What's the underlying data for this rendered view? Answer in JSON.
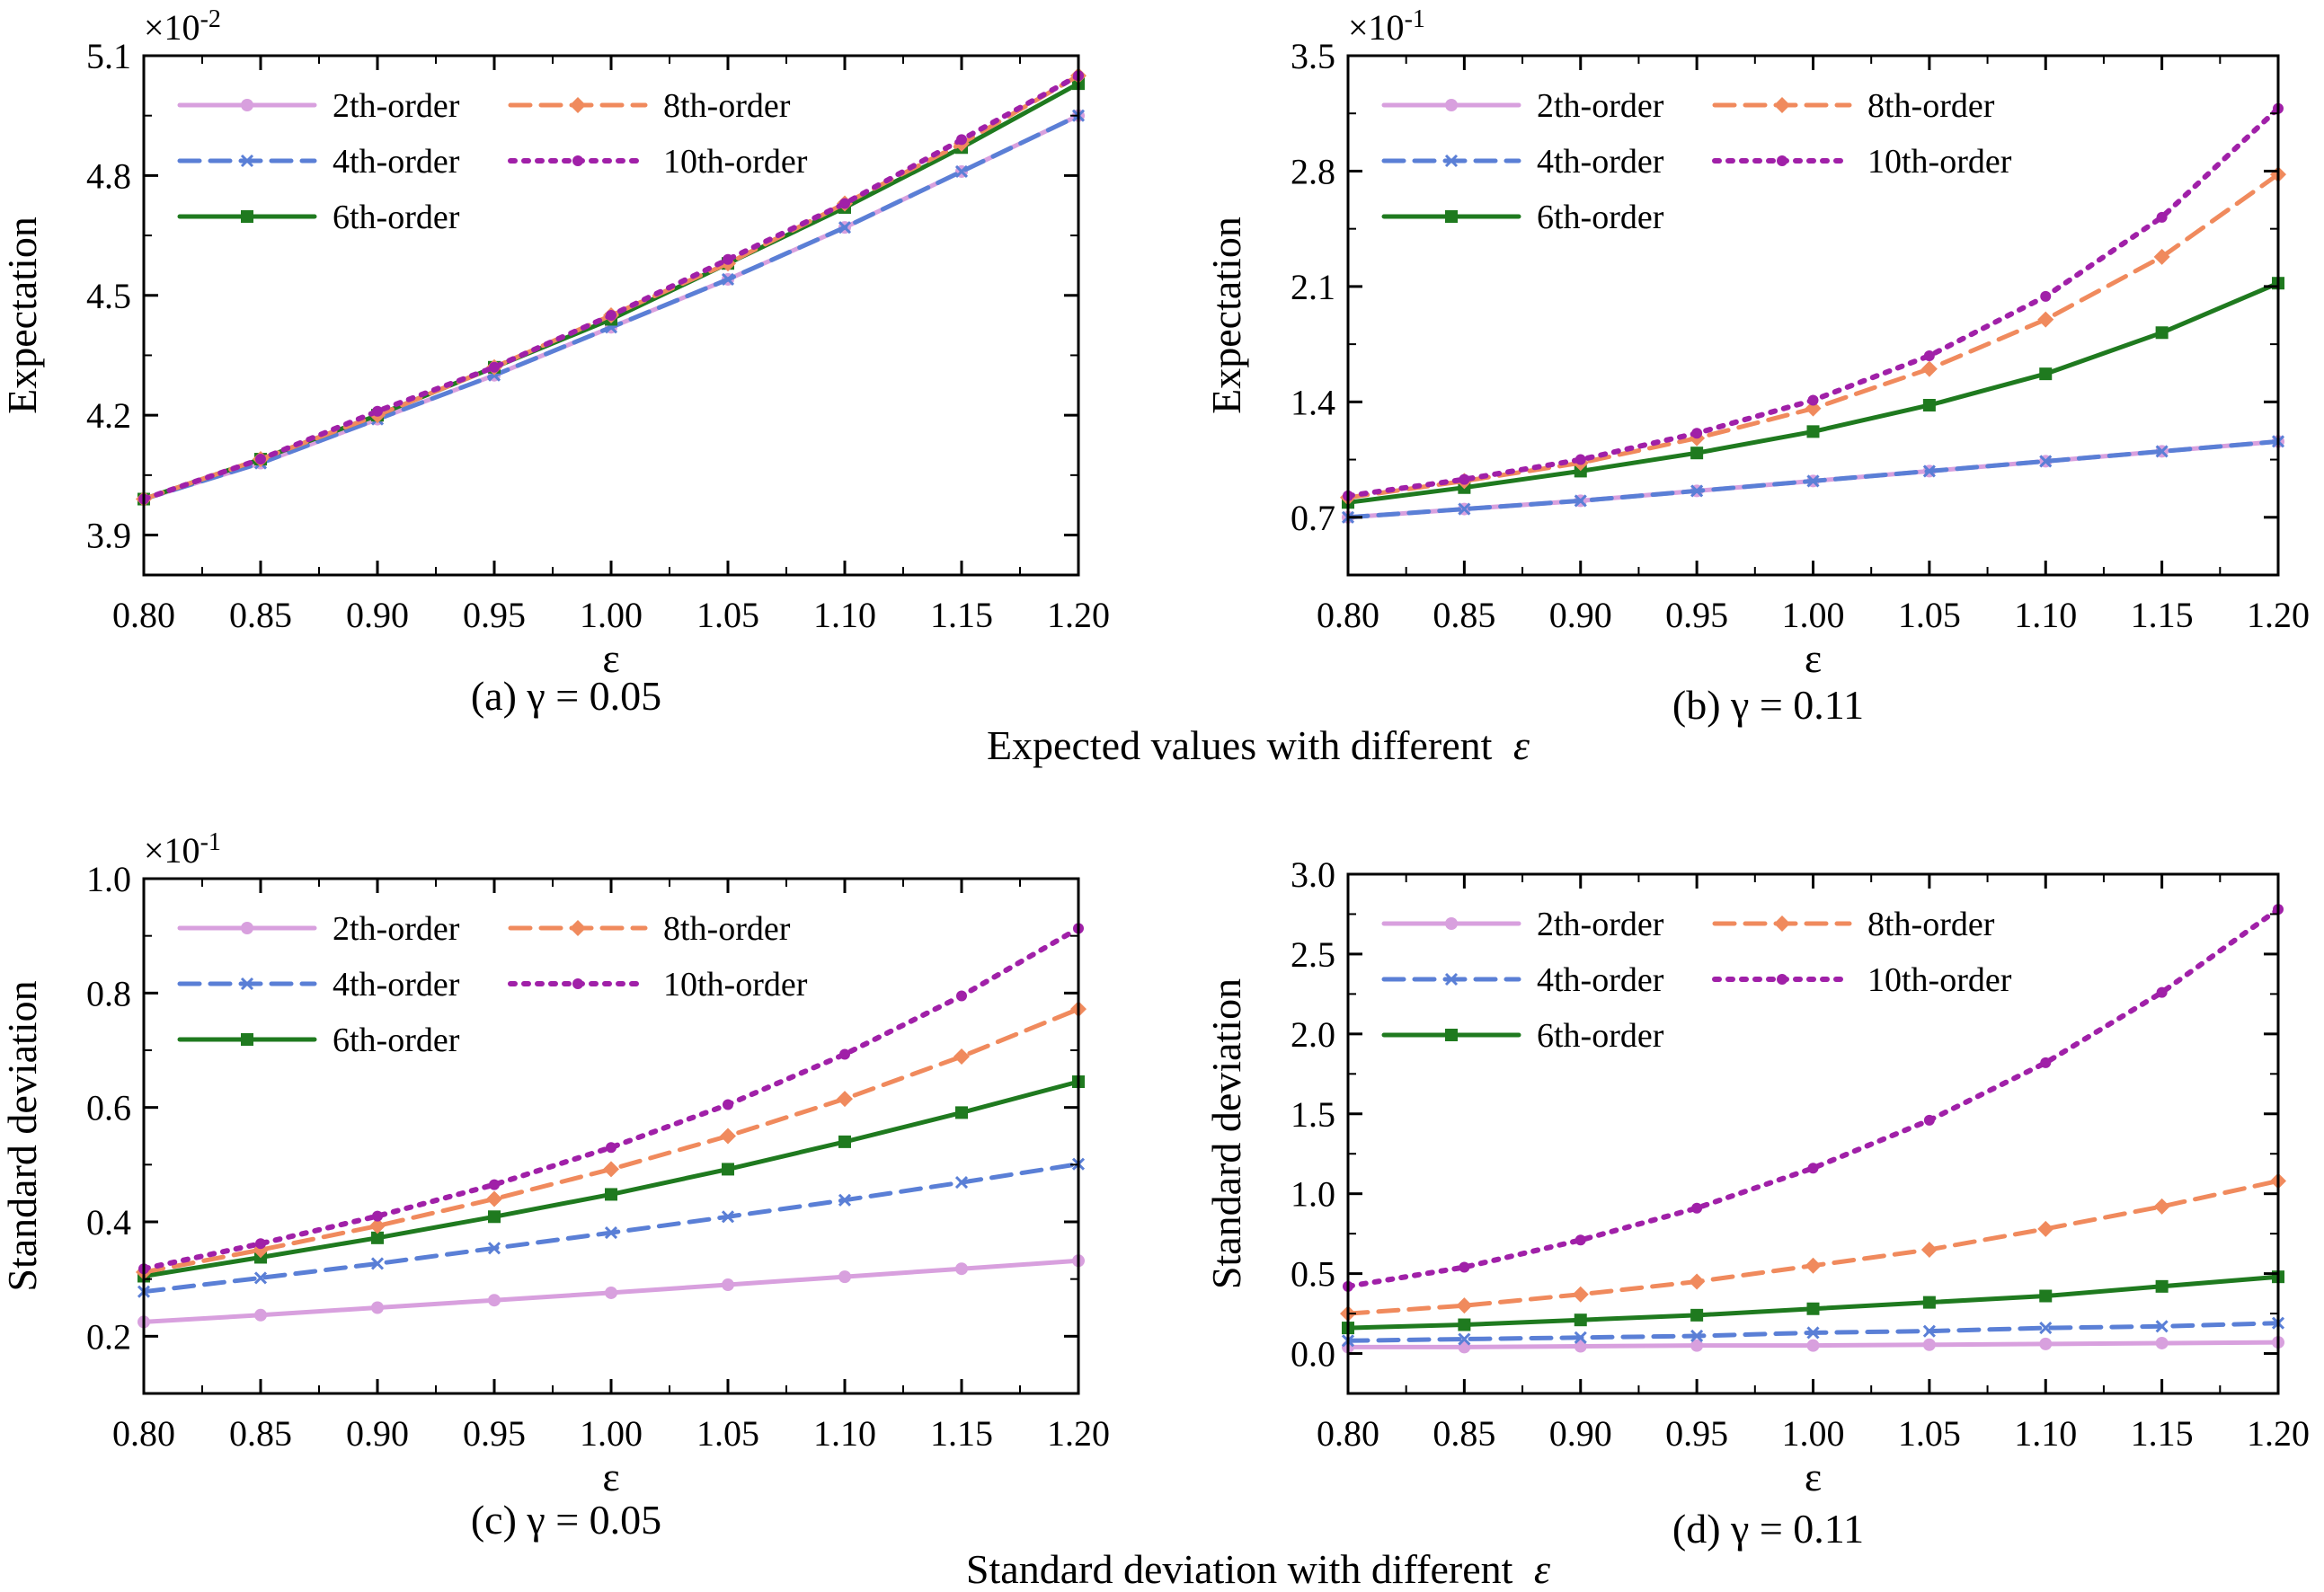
{
  "figure": {
    "captions": {
      "group_top": "Expected values with different",
      "group_bottom": "Standard deviation with different",
      "group_symbol": "ε"
    }
  },
  "chart_data": [
    {
      "id": "a",
      "type": "line",
      "caption": "(a) γ = 0.05",
      "xlabel": "ε",
      "ylabel": "Expectation",
      "exponent": {
        "base": "×10",
        "power": "-2"
      },
      "xlim": [
        0.8,
        1.2
      ],
      "ylim": [
        3.8,
        5.1
      ],
      "xticks": [
        "0.80",
        "0.85",
        "0.90",
        "0.95",
        "1.00",
        "1.05",
        "1.10",
        "1.15",
        "1.20"
      ],
      "yticks": [
        "3.9",
        "4.2",
        "4.5",
        "4.8",
        "5.1"
      ],
      "x": [
        0.8,
        0.85,
        0.9,
        0.95,
        1.0,
        1.05,
        1.1,
        1.15,
        1.2
      ],
      "series": [
        {
          "name": "2th-order",
          "color": "#d8a0de",
          "dash": "solid",
          "marker": "circle",
          "values": [
            3.99,
            4.08,
            4.19,
            4.3,
            4.42,
            4.54,
            4.67,
            4.81,
            4.95
          ]
        },
        {
          "name": "4th-order",
          "color": "#5a7fd6",
          "dash": "dashed",
          "marker": "x",
          "values": [
            3.99,
            4.08,
            4.19,
            4.3,
            4.42,
            4.54,
            4.67,
            4.81,
            4.95
          ]
        },
        {
          "name": "6th-order",
          "color": "#1f7a1f",
          "dash": "solid",
          "marker": "square",
          "values": [
            3.99,
            4.09,
            4.2,
            4.32,
            4.44,
            4.58,
            4.72,
            4.87,
            5.03
          ]
        },
        {
          "name": "8th-order",
          "color": "#f08a5d",
          "dash": "dashed",
          "marker": "diamond",
          "values": [
            3.99,
            4.09,
            4.2,
            4.32,
            4.45,
            4.58,
            4.73,
            4.88,
            5.05
          ]
        },
        {
          "name": "10th-order",
          "color": "#a020a8",
          "dash": "dotted",
          "marker": "dot",
          "values": [
            3.99,
            4.09,
            4.21,
            4.32,
            4.45,
            4.59,
            4.73,
            4.89,
            5.05
          ]
        }
      ],
      "legend_position": "top-left"
    },
    {
      "id": "b",
      "type": "line",
      "caption": "(b) γ = 0.11",
      "xlabel": "ε",
      "ylabel": "Expectation",
      "exponent": {
        "base": "×10",
        "power": "-1"
      },
      "xlim": [
        0.8,
        1.2
      ],
      "ylim": [
        0.35,
        3.5
      ],
      "xticks": [
        "0.80",
        "0.85",
        "0.90",
        "0.95",
        "1.00",
        "1.05",
        "1.10",
        "1.15",
        "1.20"
      ],
      "yticks": [
        "0.7",
        "1.4",
        "2.1",
        "2.8",
        "3.5"
      ],
      "x": [
        0.8,
        0.85,
        0.9,
        0.95,
        1.0,
        1.05,
        1.1,
        1.15,
        1.2
      ],
      "series": [
        {
          "name": "2th-order",
          "color": "#d8a0de",
          "dash": "solid",
          "marker": "circle",
          "values": [
            0.7,
            0.75,
            0.8,
            0.86,
            0.92,
            0.98,
            1.04,
            1.1,
            1.16
          ]
        },
        {
          "name": "4th-order",
          "color": "#5a7fd6",
          "dash": "dashed",
          "marker": "x",
          "values": [
            0.7,
            0.75,
            0.8,
            0.86,
            0.92,
            0.98,
            1.04,
            1.1,
            1.16
          ]
        },
        {
          "name": "6th-order",
          "color": "#1f7a1f",
          "dash": "solid",
          "marker": "square",
          "values": [
            0.79,
            0.88,
            0.98,
            1.09,
            1.22,
            1.38,
            1.57,
            1.82,
            2.12
          ]
        },
        {
          "name": "8th-order",
          "color": "#f08a5d",
          "dash": "dashed",
          "marker": "diamond",
          "values": [
            0.82,
            0.92,
            1.03,
            1.18,
            1.36,
            1.6,
            1.9,
            2.28,
            2.78
          ]
        },
        {
          "name": "10th-order",
          "color": "#a020a8",
          "dash": "dotted",
          "marker": "dot",
          "values": [
            0.83,
            0.93,
            1.05,
            1.21,
            1.41,
            1.68,
            2.04,
            2.52,
            3.18
          ]
        }
      ],
      "legend_position": "top-left"
    },
    {
      "id": "c",
      "type": "line",
      "caption": "(c) γ = 0.05",
      "xlabel": "ε",
      "ylabel": "Standard deviation",
      "exponent": {
        "base": "×10",
        "power": "-1"
      },
      "xlim": [
        0.8,
        1.2
      ],
      "ylim": [
        0.1,
        1.0
      ],
      "xticks": [
        "0.80",
        "0.85",
        "0.90",
        "0.95",
        "1.00",
        "1.05",
        "1.10",
        "1.15",
        "1.20"
      ],
      "yticks": [
        "0.2",
        "0.4",
        "0.6",
        "0.8",
        "1.0"
      ],
      "x": [
        0.8,
        0.85,
        0.9,
        0.95,
        1.0,
        1.05,
        1.1,
        1.15,
        1.2
      ],
      "series": [
        {
          "name": "2th-order",
          "color": "#d8a0de",
          "dash": "solid",
          "marker": "circle",
          "values": [
            0.225,
            0.237,
            0.25,
            0.263,
            0.276,
            0.29,
            0.304,
            0.318,
            0.332
          ]
        },
        {
          "name": "4th-order",
          "color": "#5a7fd6",
          "dash": "dashed",
          "marker": "x",
          "values": [
            0.278,
            0.302,
            0.327,
            0.354,
            0.381,
            0.409,
            0.438,
            0.469,
            0.501
          ]
        },
        {
          "name": "6th-order",
          "color": "#1f7a1f",
          "dash": "solid",
          "marker": "square",
          "values": [
            0.305,
            0.338,
            0.372,
            0.409,
            0.448,
            0.492,
            0.54,
            0.591,
            0.645
          ]
        },
        {
          "name": "8th-order",
          "color": "#f08a5d",
          "dash": "dashed",
          "marker": "diamond",
          "values": [
            0.312,
            0.351,
            0.393,
            0.44,
            0.492,
            0.55,
            0.615,
            0.689,
            0.772
          ]
        },
        {
          "name": "10th-order",
          "color": "#a020a8",
          "dash": "dotted",
          "marker": "dot",
          "values": [
            0.318,
            0.362,
            0.41,
            0.465,
            0.53,
            0.605,
            0.693,
            0.795,
            0.913
          ]
        }
      ],
      "legend_position": "top-left"
    },
    {
      "id": "d",
      "type": "line",
      "caption": "(d) γ = 0.11",
      "xlabel": "ε",
      "ylabel": "Standard deviation",
      "exponent": null,
      "xlim": [
        0.8,
        1.2
      ],
      "ylim": [
        -0.25,
        3.0
      ],
      "xticks": [
        "0.80",
        "0.85",
        "0.90",
        "0.95",
        "1.00",
        "1.05",
        "1.10",
        "1.15",
        "1.20"
      ],
      "yticks": [
        "0.0",
        "0.5",
        "1.0",
        "1.5",
        "2.0",
        "2.5",
        "3.0"
      ],
      "x": [
        0.8,
        0.85,
        0.9,
        0.95,
        1.0,
        1.05,
        1.1,
        1.15,
        1.2
      ],
      "series": [
        {
          "name": "2th-order",
          "color": "#d8a0de",
          "dash": "solid",
          "marker": "circle",
          "values": [
            0.04,
            0.04,
            0.045,
            0.05,
            0.05,
            0.055,
            0.06,
            0.065,
            0.07
          ]
        },
        {
          "name": "4th-order",
          "color": "#5a7fd6",
          "dash": "dashed",
          "marker": "x",
          "values": [
            0.08,
            0.09,
            0.1,
            0.11,
            0.13,
            0.14,
            0.16,
            0.17,
            0.19
          ]
        },
        {
          "name": "6th-order",
          "color": "#1f7a1f",
          "dash": "solid",
          "marker": "square",
          "values": [
            0.16,
            0.18,
            0.21,
            0.24,
            0.28,
            0.32,
            0.36,
            0.42,
            0.48
          ]
        },
        {
          "name": "8th-order",
          "color": "#f08a5d",
          "dash": "dashed",
          "marker": "diamond",
          "values": [
            0.25,
            0.3,
            0.37,
            0.45,
            0.55,
            0.65,
            0.78,
            0.92,
            1.08
          ]
        },
        {
          "name": "10th-order",
          "color": "#a020a8",
          "dash": "dotted",
          "marker": "dot",
          "values": [
            0.42,
            0.54,
            0.71,
            0.91,
            1.16,
            1.46,
            1.82,
            2.26,
            2.78
          ]
        }
      ],
      "legend_position": "top-left"
    }
  ]
}
